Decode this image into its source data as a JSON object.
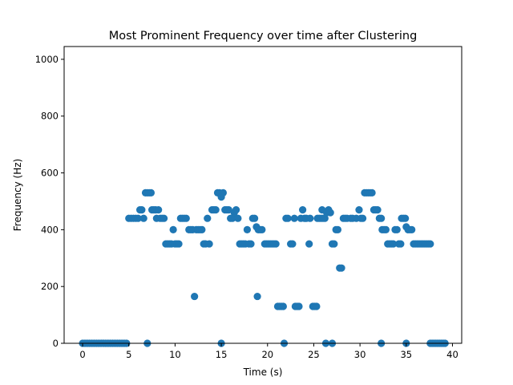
{
  "chart_data": {
    "type": "scatter",
    "title": "Most Prominent Frequency over time after Clustering",
    "xlabel": "Time (s)",
    "ylabel": "Frequency (Hz)",
    "xlim": [
      -2,
      41
    ],
    "ylim": [
      0,
      1045
    ],
    "xticks": [
      0,
      5,
      10,
      15,
      20,
      25,
      30,
      35,
      40
    ],
    "yticks": [
      0,
      200,
      400,
      600,
      800,
      1000
    ],
    "grid": false,
    "legend": "none",
    "marker_color": "#1f77b4",
    "series": [
      {
        "points": [
          [
            0.0,
            0
          ],
          [
            0.25,
            0
          ],
          [
            0.5,
            0
          ],
          [
            0.75,
            0
          ],
          [
            1.0,
            0
          ],
          [
            1.25,
            0
          ],
          [
            1.5,
            0
          ],
          [
            1.75,
            0
          ],
          [
            2.0,
            0
          ],
          [
            2.25,
            0
          ],
          [
            2.5,
            0
          ],
          [
            2.75,
            0
          ],
          [
            3.0,
            0
          ],
          [
            3.25,
            0
          ],
          [
            3.5,
            0
          ],
          [
            3.75,
            0
          ],
          [
            4.0,
            0
          ],
          [
            4.25,
            0
          ],
          [
            4.5,
            0
          ],
          [
            4.75,
            0
          ],
          [
            5.0,
            440
          ],
          [
            5.25,
            440
          ],
          [
            5.5,
            440
          ],
          [
            5.75,
            440
          ],
          [
            6.0,
            440
          ],
          [
            6.2,
            470
          ],
          [
            6.4,
            470
          ],
          [
            6.6,
            440
          ],
          [
            6.8,
            530
          ],
          [
            7.0,
            530
          ],
          [
            7.2,
            530
          ],
          [
            7.4,
            530
          ],
          [
            7.0,
            0
          ],
          [
            7.5,
            470
          ],
          [
            7.7,
            470
          ],
          [
            7.9,
            470
          ],
          [
            8.0,
            440
          ],
          [
            8.2,
            470
          ],
          [
            8.4,
            440
          ],
          [
            8.6,
            440
          ],
          [
            8.8,
            440
          ],
          [
            9.0,
            350
          ],
          [
            9.2,
            350
          ],
          [
            9.4,
            350
          ],
          [
            9.6,
            350
          ],
          [
            9.8,
            400
          ],
          [
            10.0,
            350
          ],
          [
            10.2,
            350
          ],
          [
            10.4,
            350
          ],
          [
            10.6,
            440
          ],
          [
            10.8,
            440
          ],
          [
            11.0,
            440
          ],
          [
            11.2,
            440
          ],
          [
            11.5,
            400
          ],
          [
            11.7,
            400
          ],
          [
            11.9,
            400
          ],
          [
            12.1,
            165
          ],
          [
            12.3,
            400
          ],
          [
            12.5,
            400
          ],
          [
            12.7,
            400
          ],
          [
            12.9,
            400
          ],
          [
            13.1,
            350
          ],
          [
            13.3,
            350
          ],
          [
            13.5,
            440
          ],
          [
            13.7,
            350
          ],
          [
            14.0,
            470
          ],
          [
            14.2,
            470
          ],
          [
            14.4,
            470
          ],
          [
            14.6,
            530
          ],
          [
            14.8,
            530
          ],
          [
            15.0,
            515
          ],
          [
            15.0,
            0
          ],
          [
            15.2,
            530
          ],
          [
            15.4,
            470
          ],
          [
            15.6,
            470
          ],
          [
            15.8,
            470
          ],
          [
            16.0,
            440
          ],
          [
            16.2,
            440
          ],
          [
            16.4,
            460
          ],
          [
            16.6,
            470
          ],
          [
            16.8,
            440
          ],
          [
            17.0,
            350
          ],
          [
            17.2,
            350
          ],
          [
            17.4,
            350
          ],
          [
            17.6,
            350
          ],
          [
            17.8,
            400
          ],
          [
            18.0,
            350
          ],
          [
            18.2,
            350
          ],
          [
            18.4,
            440
          ],
          [
            18.6,
            440
          ],
          [
            18.8,
            410
          ],
          [
            18.9,
            165
          ],
          [
            19.0,
            400
          ],
          [
            19.2,
            400
          ],
          [
            19.4,
            400
          ],
          [
            19.7,
            350
          ],
          [
            19.9,
            350
          ],
          [
            20.1,
            350
          ],
          [
            20.3,
            350
          ],
          [
            20.5,
            350
          ],
          [
            20.7,
            350
          ],
          [
            20.9,
            350
          ],
          [
            21.1,
            130
          ],
          [
            21.3,
            130
          ],
          [
            21.5,
            130
          ],
          [
            21.7,
            130
          ],
          [
            21.8,
            0
          ],
          [
            22.0,
            440
          ],
          [
            22.2,
            440
          ],
          [
            22.5,
            350
          ],
          [
            22.7,
            350
          ],
          [
            22.9,
            440
          ],
          [
            23.0,
            130
          ],
          [
            23.2,
            130
          ],
          [
            23.4,
            130
          ],
          [
            23.6,
            440
          ],
          [
            23.8,
            470
          ],
          [
            24.0,
            440
          ],
          [
            24.2,
            440
          ],
          [
            24.5,
            350
          ],
          [
            24.6,
            440
          ],
          [
            24.9,
            130
          ],
          [
            25.1,
            130
          ],
          [
            25.3,
            130
          ],
          [
            25.4,
            440
          ],
          [
            25.6,
            440
          ],
          [
            25.8,
            440
          ],
          [
            25.9,
            470
          ],
          [
            26.0,
            440
          ],
          [
            26.2,
            440
          ],
          [
            26.3,
            0
          ],
          [
            26.4,
            460
          ],
          [
            26.6,
            470
          ],
          [
            26.8,
            460
          ],
          [
            27.0,
            350
          ],
          [
            27.0,
            0
          ],
          [
            27.2,
            350
          ],
          [
            27.4,
            400
          ],
          [
            27.6,
            400
          ],
          [
            27.8,
            265
          ],
          [
            28.0,
            265
          ],
          [
            28.2,
            440
          ],
          [
            28.4,
            440
          ],
          [
            28.6,
            440
          ],
          [
            29.0,
            440
          ],
          [
            29.2,
            440
          ],
          [
            29.6,
            440
          ],
          [
            29.9,
            470
          ],
          [
            30.1,
            440
          ],
          [
            30.3,
            440
          ],
          [
            30.5,
            530
          ],
          [
            30.7,
            530
          ],
          [
            30.9,
            530
          ],
          [
            31.1,
            530
          ],
          [
            31.3,
            530
          ],
          [
            31.5,
            470
          ],
          [
            31.7,
            470
          ],
          [
            31.9,
            470
          ],
          [
            32.1,
            440
          ],
          [
            32.3,
            440
          ],
          [
            32.4,
            400
          ],
          [
            32.6,
            400
          ],
          [
            32.8,
            400
          ],
          [
            32.3,
            0
          ],
          [
            33.0,
            350
          ],
          [
            33.2,
            350
          ],
          [
            33.4,
            350
          ],
          [
            33.6,
            350
          ],
          [
            33.8,
            400
          ],
          [
            34.0,
            400
          ],
          [
            34.2,
            350
          ],
          [
            34.4,
            350
          ],
          [
            34.5,
            440
          ],
          [
            34.7,
            440
          ],
          [
            34.9,
            440
          ],
          [
            35.0,
            410
          ],
          [
            35.2,
            400
          ],
          [
            35.4,
            400
          ],
          [
            35.6,
            400
          ],
          [
            35.0,
            0
          ],
          [
            35.8,
            350
          ],
          [
            36.0,
            350
          ],
          [
            36.2,
            350
          ],
          [
            36.4,
            350
          ],
          [
            36.6,
            350
          ],
          [
            36.8,
            350
          ],
          [
            37.0,
            350
          ],
          [
            37.2,
            350
          ],
          [
            37.4,
            350
          ],
          [
            37.6,
            350
          ],
          [
            37.6,
            0
          ],
          [
            37.8,
            0
          ],
          [
            38.0,
            0
          ],
          [
            38.2,
            0
          ],
          [
            38.4,
            0
          ],
          [
            38.6,
            0
          ],
          [
            38.8,
            0
          ],
          [
            39.0,
            0
          ],
          [
            39.2,
            0
          ]
        ]
      }
    ]
  }
}
